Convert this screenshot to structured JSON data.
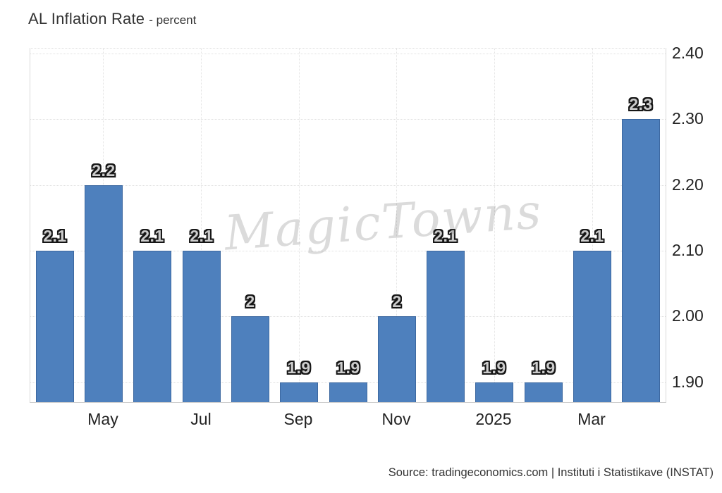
{
  "header": {
    "title": "AL Inflation Rate",
    "subtitle": "- percent"
  },
  "watermark": "MagicTowns",
  "source": "Source: tradingeconomics.com | Instituti i Statistikave (INSTAT)",
  "colors": {
    "bar_fill": "#4e80bd",
    "bar_border": "#3c68a0",
    "grid": "#e0e0e0",
    "axis_text": "#222222",
    "data_label_fill": "#cccccc",
    "data_label_outline": "#161616"
  },
  "chart_data": {
    "type": "bar",
    "title": "AL Inflation Rate - percent",
    "xlabel": "",
    "ylabel": "percent",
    "categories": [
      "",
      "May",
      "",
      "Jul",
      "",
      "Sep",
      "",
      "Nov",
      "",
      "2025",
      "",
      "Mar",
      ""
    ],
    "values": [
      2.1,
      2.2,
      2.1,
      2.1,
      2,
      1.9,
      1.9,
      2,
      2.1,
      1.9,
      1.9,
      2.1,
      2.3
    ],
    "bar_labels": [
      "2.1",
      "2.2",
      "2.1",
      "2.1",
      "2",
      "1.9",
      "1.9",
      "2",
      "2.1",
      "1.9",
      "1.9",
      "2.1",
      "2.3"
    ],
    "ylim": [
      1.87,
      2.407
    ],
    "yticks": [
      {
        "value": 2.4,
        "label": "2.40"
      },
      {
        "value": 2.3,
        "label": "2.30"
      },
      {
        "value": 2.2,
        "label": "2.20"
      },
      {
        "value": 2.1,
        "label": "2.10"
      },
      {
        "value": 2.0,
        "label": "2.00"
      },
      {
        "value": 1.9,
        "label": "1.90"
      }
    ],
    "grid": true,
    "legend": "none"
  }
}
